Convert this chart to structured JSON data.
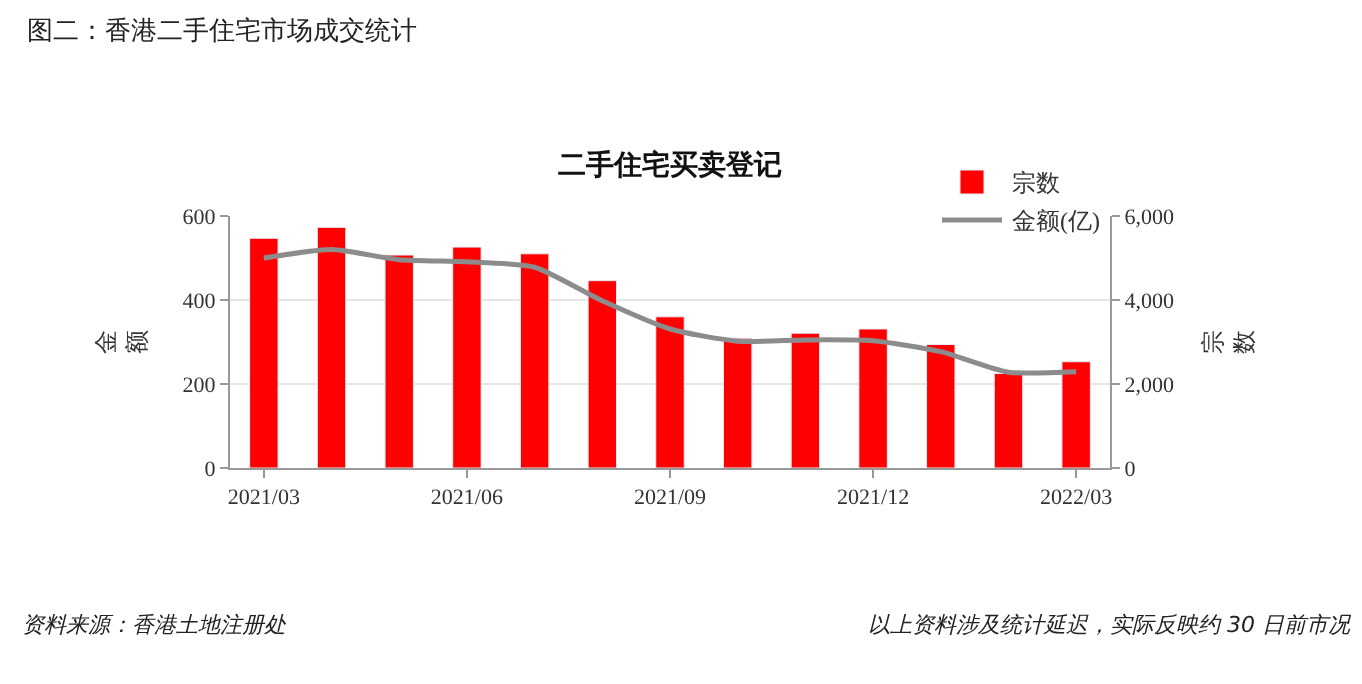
{
  "chart_data": {
    "type": "bar",
    "title": "图二：香港二手住宅市场成交统计",
    "subtitle": "二手住宅买卖登记",
    "ylabel": "金额",
    "y2label": "宗数",
    "categories": [
      "2021/03",
      null,
      null,
      "2021/06",
      null,
      null,
      "2021/09",
      null,
      null,
      "2021/12",
      null,
      null,
      "2022/03"
    ],
    "series": [
      {
        "name": "宗数",
        "axis": "y2",
        "color": "#ff0000",
        "values": [
          5470,
          5730,
          5070,
          5260,
          5100,
          4460,
          3600,
          3090,
          3210,
          3310,
          2940,
          2250,
          2530
        ]
      },
      {
        "name": "金额(亿)",
        "type": "line",
        "axis": "y",
        "color": "#8c8c8c",
        "values": [
          500,
          520,
          496,
          491,
          478,
          398,
          331,
          302,
          305,
          303,
          277,
          228,
          229
        ]
      }
    ],
    "ylim": [
      0,
      600
    ],
    "yticks": [
      0,
      200,
      400,
      600
    ],
    "y2lim": [
      0,
      6000
    ],
    "y2ticks": [
      0,
      {
        "value": 2000,
        "label": "2,000"
      },
      {
        "value": 4000,
        "label": "4,000"
      },
      {
        "value": 6000,
        "label": "6,000"
      }
    ],
    "grid": "y",
    "legend": "top right",
    "marker": "none",
    "line_style": "solid",
    "annotations": [
      "资料来源：香港土地注册处",
      "以上资料涉及统计延迟，实际反映约 30 日前市况"
    ]
  }
}
